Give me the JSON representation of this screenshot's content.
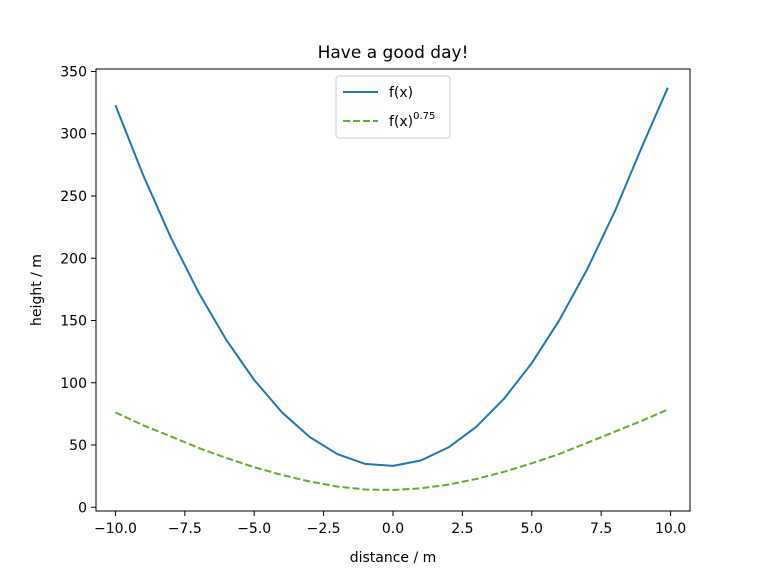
{
  "chart_data": {
    "type": "line",
    "title": "Have a good day!",
    "xlabel": "distance / m",
    "ylabel": "height / m",
    "xlim": [
      -10.7,
      10.7
    ],
    "ylim": [
      -3,
      352
    ],
    "xticks": [
      -10.0,
      -7.5,
      -5.0,
      -2.5,
      0.0,
      2.5,
      5.0,
      7.5,
      10.0
    ],
    "xtick_labels": [
      "−10.0",
      "−7.5",
      "−5.0",
      "−2.5",
      "0.0",
      "2.5",
      "5.0",
      "7.5",
      "10.0"
    ],
    "yticks": [
      0,
      50,
      100,
      150,
      200,
      250,
      300,
      350
    ],
    "ytick_labels": [
      "0",
      "50",
      "100",
      "150",
      "200",
      "250",
      "300",
      "350"
    ],
    "grid": false,
    "legend_position": "upper-center",
    "x": [
      -10.0,
      -9.0,
      -8.0,
      -7.0,
      -6.0,
      -5.0,
      -4.0,
      -3.0,
      -2.0,
      -1.0,
      0.0,
      1.0,
      2.0,
      3.0,
      4.0,
      5.0,
      6.0,
      7.0,
      8.0,
      9.0,
      9.9
    ],
    "series": [
      {
        "name": "f(x)",
        "name_base": "f(x)",
        "name_sup": "",
        "style": "solid",
        "color": "#1f77b4",
        "values": [
          323.0,
          266.7,
          216.5,
          172.3,
          134.2,
          102.2,
          76.2,
          56.4,
          42.6,
          34.8,
          33.2,
          37.6,
          48.1,
          64.6,
          87.2,
          115.8,
          150.5,
          191.3,
          238.2,
          291.1,
          337.0
        ]
      },
      {
        "name": "f(x)^0.75",
        "name_base": "f(x)",
        "name_sup": "0.75",
        "style": "dashed",
        "color": "#6aab2e",
        "values": [
          76.2,
          65.8,
          56.9,
          47.6,
          39.6,
          32.2,
          25.9,
          20.7,
          16.6,
          14.3,
          13.9,
          15.2,
          18.2,
          22.7,
          28.5,
          35.3,
          42.9,
          51.8,
          60.8,
          69.8,
          78.5
        ]
      }
    ]
  }
}
